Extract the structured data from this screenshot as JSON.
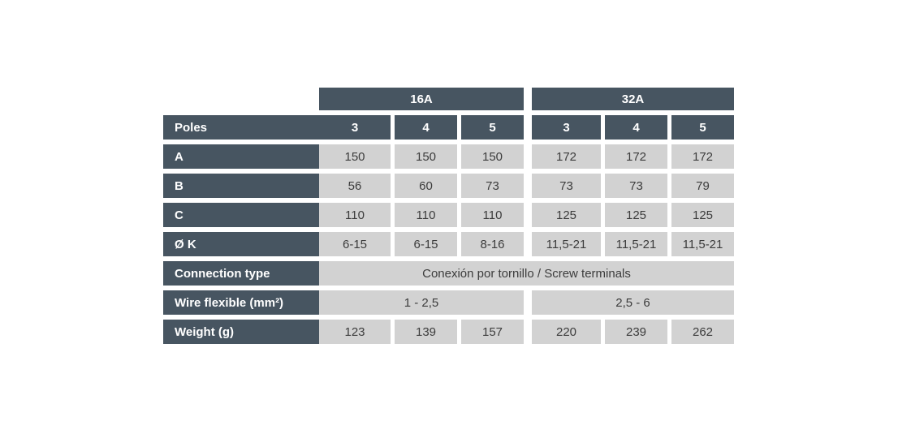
{
  "colors": {
    "header_bg": "#475561",
    "data_cell_bg": "#d2d2d2",
    "header_text": "#ffffff",
    "data_text": "#3c3c3c",
    "page_bg": "#ffffff"
  },
  "table": {
    "groups": [
      {
        "label": "16A"
      },
      {
        "label": "32A"
      }
    ],
    "poles": {
      "label": "Poles",
      "values": [
        "3",
        "4",
        "5",
        "3",
        "4",
        "5"
      ]
    },
    "rows": [
      {
        "label": "A",
        "values": [
          "150",
          "150",
          "150",
          "172",
          "172",
          "172"
        ]
      },
      {
        "label": "B",
        "values": [
          "56",
          "60",
          "73",
          "73",
          "73",
          "79"
        ]
      },
      {
        "label": "C",
        "values": [
          "110",
          "110",
          "110",
          "125",
          "125",
          "125"
        ]
      },
      {
        "label": "Ø K",
        "values": [
          "6-15",
          "6-15",
          "8-16",
          "11,5-21",
          "11,5-21",
          "11,5-21"
        ]
      }
    ],
    "connection": {
      "label": "Connection type",
      "value": "Conexión por tornillo / Screw terminals"
    },
    "wire": {
      "label": "Wire flexible (mm²)",
      "values": [
        "1 - 2,5",
        "2,5 - 6"
      ]
    },
    "weight": {
      "label": "Weight (g)",
      "values": [
        "123",
        "139",
        "157",
        "220",
        "239",
        "262"
      ]
    }
  }
}
